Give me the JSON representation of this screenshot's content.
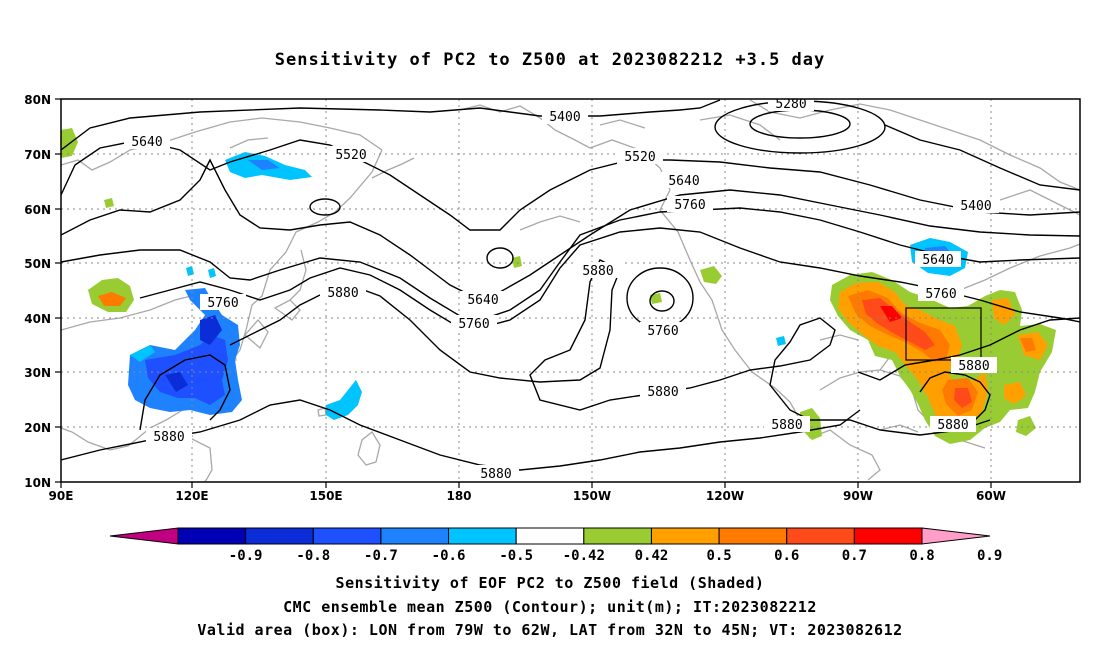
{
  "title": "Sensitivity of PC2 to Z500 at 2023082212 +3.5 day",
  "lat_labels": [
    "80N",
    "70N",
    "60N",
    "50N",
    "40N",
    "30N",
    "20N",
    "10N"
  ],
  "lon_labels": [
    "90E",
    "120E",
    "150E",
    "180",
    "150W",
    "120W",
    "90W",
    "60W"
  ],
  "contour_labels": [
    {
      "text": "5280"
    },
    {
      "text": "5400"
    },
    {
      "text": "5400"
    },
    {
      "text": "5520"
    },
    {
      "text": "5520"
    },
    {
      "text": "5640"
    },
    {
      "text": "5640"
    },
    {
      "text": "5640"
    },
    {
      "text": "5640"
    },
    {
      "text": "5760"
    },
    {
      "text": "5760"
    },
    {
      "text": "5760"
    },
    {
      "text": "5760"
    },
    {
      "text": "5760"
    },
    {
      "text": "5880"
    },
    {
      "text": "5880"
    },
    {
      "text": "5880"
    },
    {
      "text": "5880"
    },
    {
      "text": "5880"
    },
    {
      "text": "5880"
    },
    {
      "text": "5880"
    },
    {
      "text": "5880"
    }
  ],
  "colorbar": {
    "colors": [
      "#c00080",
      "#0000b4",
      "#0a2dd8",
      "#1e50ff",
      "#1e82ff",
      "#00c4ff",
      "#ffffff",
      "#99cc33",
      "#ffa000",
      "#ff7a00",
      "#ff4a1a",
      "#ff0000",
      "#ff9ec8"
    ],
    "labels": [
      "-0.9",
      "-0.8",
      "-0.7",
      "-0.6",
      "-0.5",
      "-0.42",
      "0.42",
      "0.5",
      "0.6",
      "0.7",
      "0.8",
      "0.9"
    ]
  },
  "valid_box": {
    "lon": [
      -79,
      -62
    ],
    "lat": [
      32,
      45
    ]
  },
  "captions": {
    "line1": "Sensitivity of EOF PC2 to Z500 field (Shaded)",
    "line2": "CMC ensemble mean Z500 (Contour); unit(m); IT:2023082212",
    "line3": "Valid area (box): LON from 79W to 62W, LAT from 32N to 45N; VT: 2023082612"
  }
}
